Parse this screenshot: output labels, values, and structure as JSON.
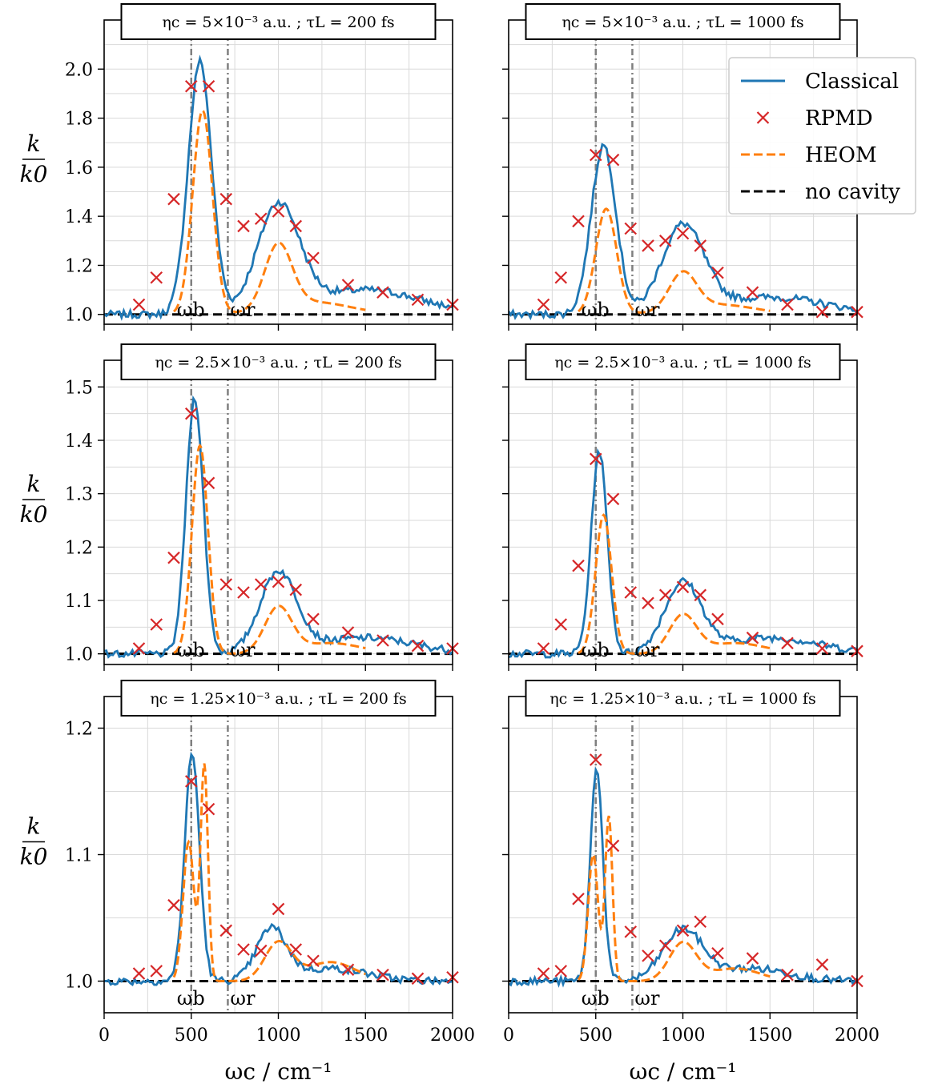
{
  "chart_data": {
    "type": "line",
    "figure": {
      "xlabel": "ωc / cm⁻¹",
      "ylabel_num": "k",
      "ylabel_den": "k0",
      "xlim": [
        0,
        2000
      ],
      "xticks": [
        0,
        500,
        1000,
        1500,
        2000
      ],
      "xtick_labels": [
        "0",
        "500",
        "1000",
        "1500",
        "2000"
      ],
      "vlines": [
        {
          "x": 500,
          "label": "ωb"
        },
        {
          "x": 710,
          "label": "ωr"
        }
      ],
      "legend": [
        {
          "name": "Classical",
          "style": "solid",
          "color": "#1f77b4"
        },
        {
          "name": "RPMD",
          "style": "marker-x",
          "color": "#d62728"
        },
        {
          "name": "HEOM",
          "style": "dashed",
          "color": "#ff7f0e"
        },
        {
          "name": "no cavity",
          "style": "dashed",
          "color": "#000000"
        }
      ],
      "legend_placement": "top-right of top-right panel"
    },
    "panels": [
      {
        "title": "ηc = 5×10⁻³ a.u.  ;  τL = 200 fs",
        "ylim": [
          0.96,
          2.2
        ],
        "yticks": [
          1.0,
          1.2,
          1.4,
          1.6,
          1.8,
          2.0
        ],
        "ytick_labels": [
          "1.0",
          "1.2",
          "1.4",
          "1.6",
          "1.8",
          "2.0"
        ],
        "classical_peaks": [
          {
            "center": 550,
            "height": 1.03,
            "width": 95
          },
          {
            "center": 1000,
            "height": 0.43,
            "width": 170
          },
          {
            "center": 1500,
            "height": 0.1,
            "width": 450
          }
        ],
        "heom_range": [
          400,
          1500
        ],
        "heom_peaks": [
          {
            "center": 565,
            "height": 0.83,
            "width": 80
          },
          {
            "center": 1000,
            "height": 0.26,
            "width": 110
          },
          {
            "center": 1200,
            "height": 0.05,
            "width": 300
          }
        ],
        "rpmd": {
          "x": [
            200,
            300,
            400,
            500,
            600,
            700,
            800,
            900,
            1000,
            1100,
            1200,
            1400,
            1600,
            1800,
            2000
          ],
          "y": [
            1.04,
            1.15,
            1.47,
            1.93,
            1.93,
            1.47,
            1.36,
            1.39,
            1.42,
            1.36,
            1.23,
            1.12,
            1.09,
            1.06,
            1.04
          ]
        }
      },
      {
        "title": "ηc = 5×10⁻³ a.u.  ;  τL = 1000 fs",
        "ylim": [
          0.96,
          2.2
        ],
        "yticks": [
          1.0,
          1.2,
          1.4,
          1.6,
          1.8,
          2.0
        ],
        "ytick_labels": [
          "1.0",
          "1.2",
          "1.4",
          "1.6",
          "1.8",
          "2.0"
        ],
        "classical_peaks": [
          {
            "center": 545,
            "height": 0.69,
            "width": 100
          },
          {
            "center": 1000,
            "height": 0.35,
            "width": 170
          },
          {
            "center": 1500,
            "height": 0.07,
            "width": 450
          }
        ],
        "heom_range": [
          400,
          1500
        ],
        "heom_peaks": [
          {
            "center": 560,
            "height": 0.43,
            "width": 85
          },
          {
            "center": 1000,
            "height": 0.15,
            "width": 110
          },
          {
            "center": 1200,
            "height": 0.04,
            "width": 300
          }
        ],
        "rpmd": {
          "x": [
            200,
            300,
            400,
            500,
            600,
            700,
            800,
            900,
            1000,
            1100,
            1200,
            1400,
            1600,
            1800,
            2000
          ],
          "y": [
            1.04,
            1.15,
            1.38,
            1.65,
            1.63,
            1.35,
            1.28,
            1.3,
            1.33,
            1.28,
            1.17,
            1.09,
            1.04,
            1.01,
            1.01
          ]
        }
      },
      {
        "title": "ηc = 2.5×10⁻³ a.u.  ;  τL = 200 fs",
        "ylim": [
          0.98,
          1.55
        ],
        "yticks": [
          1.0,
          1.1,
          1.2,
          1.3,
          1.4,
          1.5
        ],
        "ytick_labels": [
          "1.0",
          "1.1",
          "1.2",
          "1.3",
          "1.4",
          "1.5"
        ],
        "classical_peaks": [
          {
            "center": 520,
            "height": 0.48,
            "width": 70
          },
          {
            "center": 1000,
            "height": 0.15,
            "width": 150
          },
          {
            "center": 1500,
            "height": 0.03,
            "width": 400
          }
        ],
        "heom_range": [
          400,
          1500
        ],
        "heom_peaks": [
          {
            "center": 550,
            "height": 0.39,
            "width": 65
          },
          {
            "center": 1000,
            "height": 0.085,
            "width": 110
          },
          {
            "center": 1300,
            "height": 0.02,
            "width": 250
          }
        ],
        "rpmd": {
          "x": [
            200,
            300,
            400,
            500,
            600,
            700,
            800,
            900,
            1000,
            1100,
            1200,
            1400,
            1600,
            1800,
            2000
          ],
          "y": [
            1.01,
            1.055,
            1.18,
            1.45,
            1.32,
            1.13,
            1.115,
            1.13,
            1.135,
            1.12,
            1.065,
            1.04,
            1.025,
            1.015,
            1.01
          ]
        }
      },
      {
        "title": "ηc = 2.5×10⁻³ a.u.  ;  τL = 1000 fs",
        "ylim": [
          0.98,
          1.55
        ],
        "yticks": [
          1.0,
          1.1,
          1.2,
          1.3,
          1.4,
          1.5
        ],
        "ytick_labels": [
          "1.0",
          "1.1",
          "1.2",
          "1.3",
          "1.4",
          "1.5"
        ],
        "classical_peaks": [
          {
            "center": 520,
            "height": 0.38,
            "width": 65
          },
          {
            "center": 1000,
            "height": 0.13,
            "width": 150
          },
          {
            "center": 1500,
            "height": 0.03,
            "width": 400
          }
        ],
        "heom_range": [
          400,
          1500
        ],
        "heom_peaks": [
          {
            "center": 545,
            "height": 0.26,
            "width": 65
          },
          {
            "center": 1000,
            "height": 0.07,
            "width": 110
          },
          {
            "center": 1300,
            "height": 0.02,
            "width": 250
          }
        ],
        "rpmd": {
          "x": [
            200,
            300,
            400,
            500,
            600,
            700,
            800,
            900,
            1000,
            1100,
            1200,
            1400,
            1600,
            1800,
            2000
          ],
          "y": [
            1.01,
            1.055,
            1.165,
            1.365,
            1.29,
            1.115,
            1.095,
            1.11,
            1.125,
            1.11,
            1.065,
            1.03,
            1.02,
            1.01,
            1.005
          ]
        }
      },
      {
        "title": "ηc = 1.25×10⁻³ a.u.  ;  τL = 200 fs",
        "ylim": [
          0.975,
          1.225
        ],
        "yticks": [
          1.0,
          1.1,
          1.2
        ],
        "ytick_labels": [
          "1.0",
          "1.1",
          "1.2"
        ],
        "classical_peaks": [
          {
            "center": 505,
            "height": 0.18,
            "width": 60
          },
          {
            "center": 960,
            "height": 0.04,
            "width": 120
          },
          {
            "center": 1300,
            "height": 0.01,
            "width": 300
          }
        ],
        "heom_range": [
          400,
          1500
        ],
        "heom_peaks": [
          {
            "center": 485,
            "height": 0.11,
            "width": 45
          },
          {
            "center": 575,
            "height": 0.17,
            "width": 30
          },
          {
            "center": 1000,
            "height": 0.03,
            "width": 110
          },
          {
            "center": 1300,
            "height": 0.015,
            "width": 200
          }
        ],
        "rpmd": {
          "x": [
            200,
            300,
            400,
            500,
            600,
            700,
            800,
            900,
            1000,
            1100,
            1200,
            1400,
            1600,
            1800,
            2000
          ],
          "y": [
            1.006,
            1.008,
            1.06,
            1.158,
            1.136,
            1.04,
            1.025,
            1.024,
            1.057,
            1.025,
            1.016,
            1.009,
            1.005,
            1.002,
            1.003
          ]
        }
      },
      {
        "title": "ηc = 1.25×10⁻³ a.u.  ;  τL = 1000 fs",
        "ylim": [
          0.975,
          1.225
        ],
        "yticks": [
          1.0,
          1.1,
          1.2
        ],
        "ytick_labels": [
          "1.0",
          "1.1",
          "1.2"
        ],
        "classical_peaks": [
          {
            "center": 505,
            "height": 0.17,
            "width": 50
          },
          {
            "center": 1000,
            "height": 0.04,
            "width": 160
          },
          {
            "center": 1400,
            "height": 0.01,
            "width": 300
          }
        ],
        "heom_range": [
          400,
          1500
        ],
        "heom_peaks": [
          {
            "center": 485,
            "height": 0.1,
            "width": 40
          },
          {
            "center": 575,
            "height": 0.13,
            "width": 30
          },
          {
            "center": 1000,
            "height": 0.03,
            "width": 110
          },
          {
            "center": 1300,
            "height": 0.01,
            "width": 200
          }
        ],
        "rpmd": {
          "x": [
            200,
            300,
            400,
            500,
            600,
            700,
            800,
            900,
            1000,
            1100,
            1200,
            1400,
            1600,
            1800,
            2000
          ],
          "y": [
            1.006,
            1.008,
            1.065,
            1.175,
            1.107,
            1.039,
            1.02,
            1.028,
            1.04,
            1.047,
            1.022,
            1.018,
            1.005,
            1.013,
            1.0
          ]
        }
      }
    ]
  }
}
